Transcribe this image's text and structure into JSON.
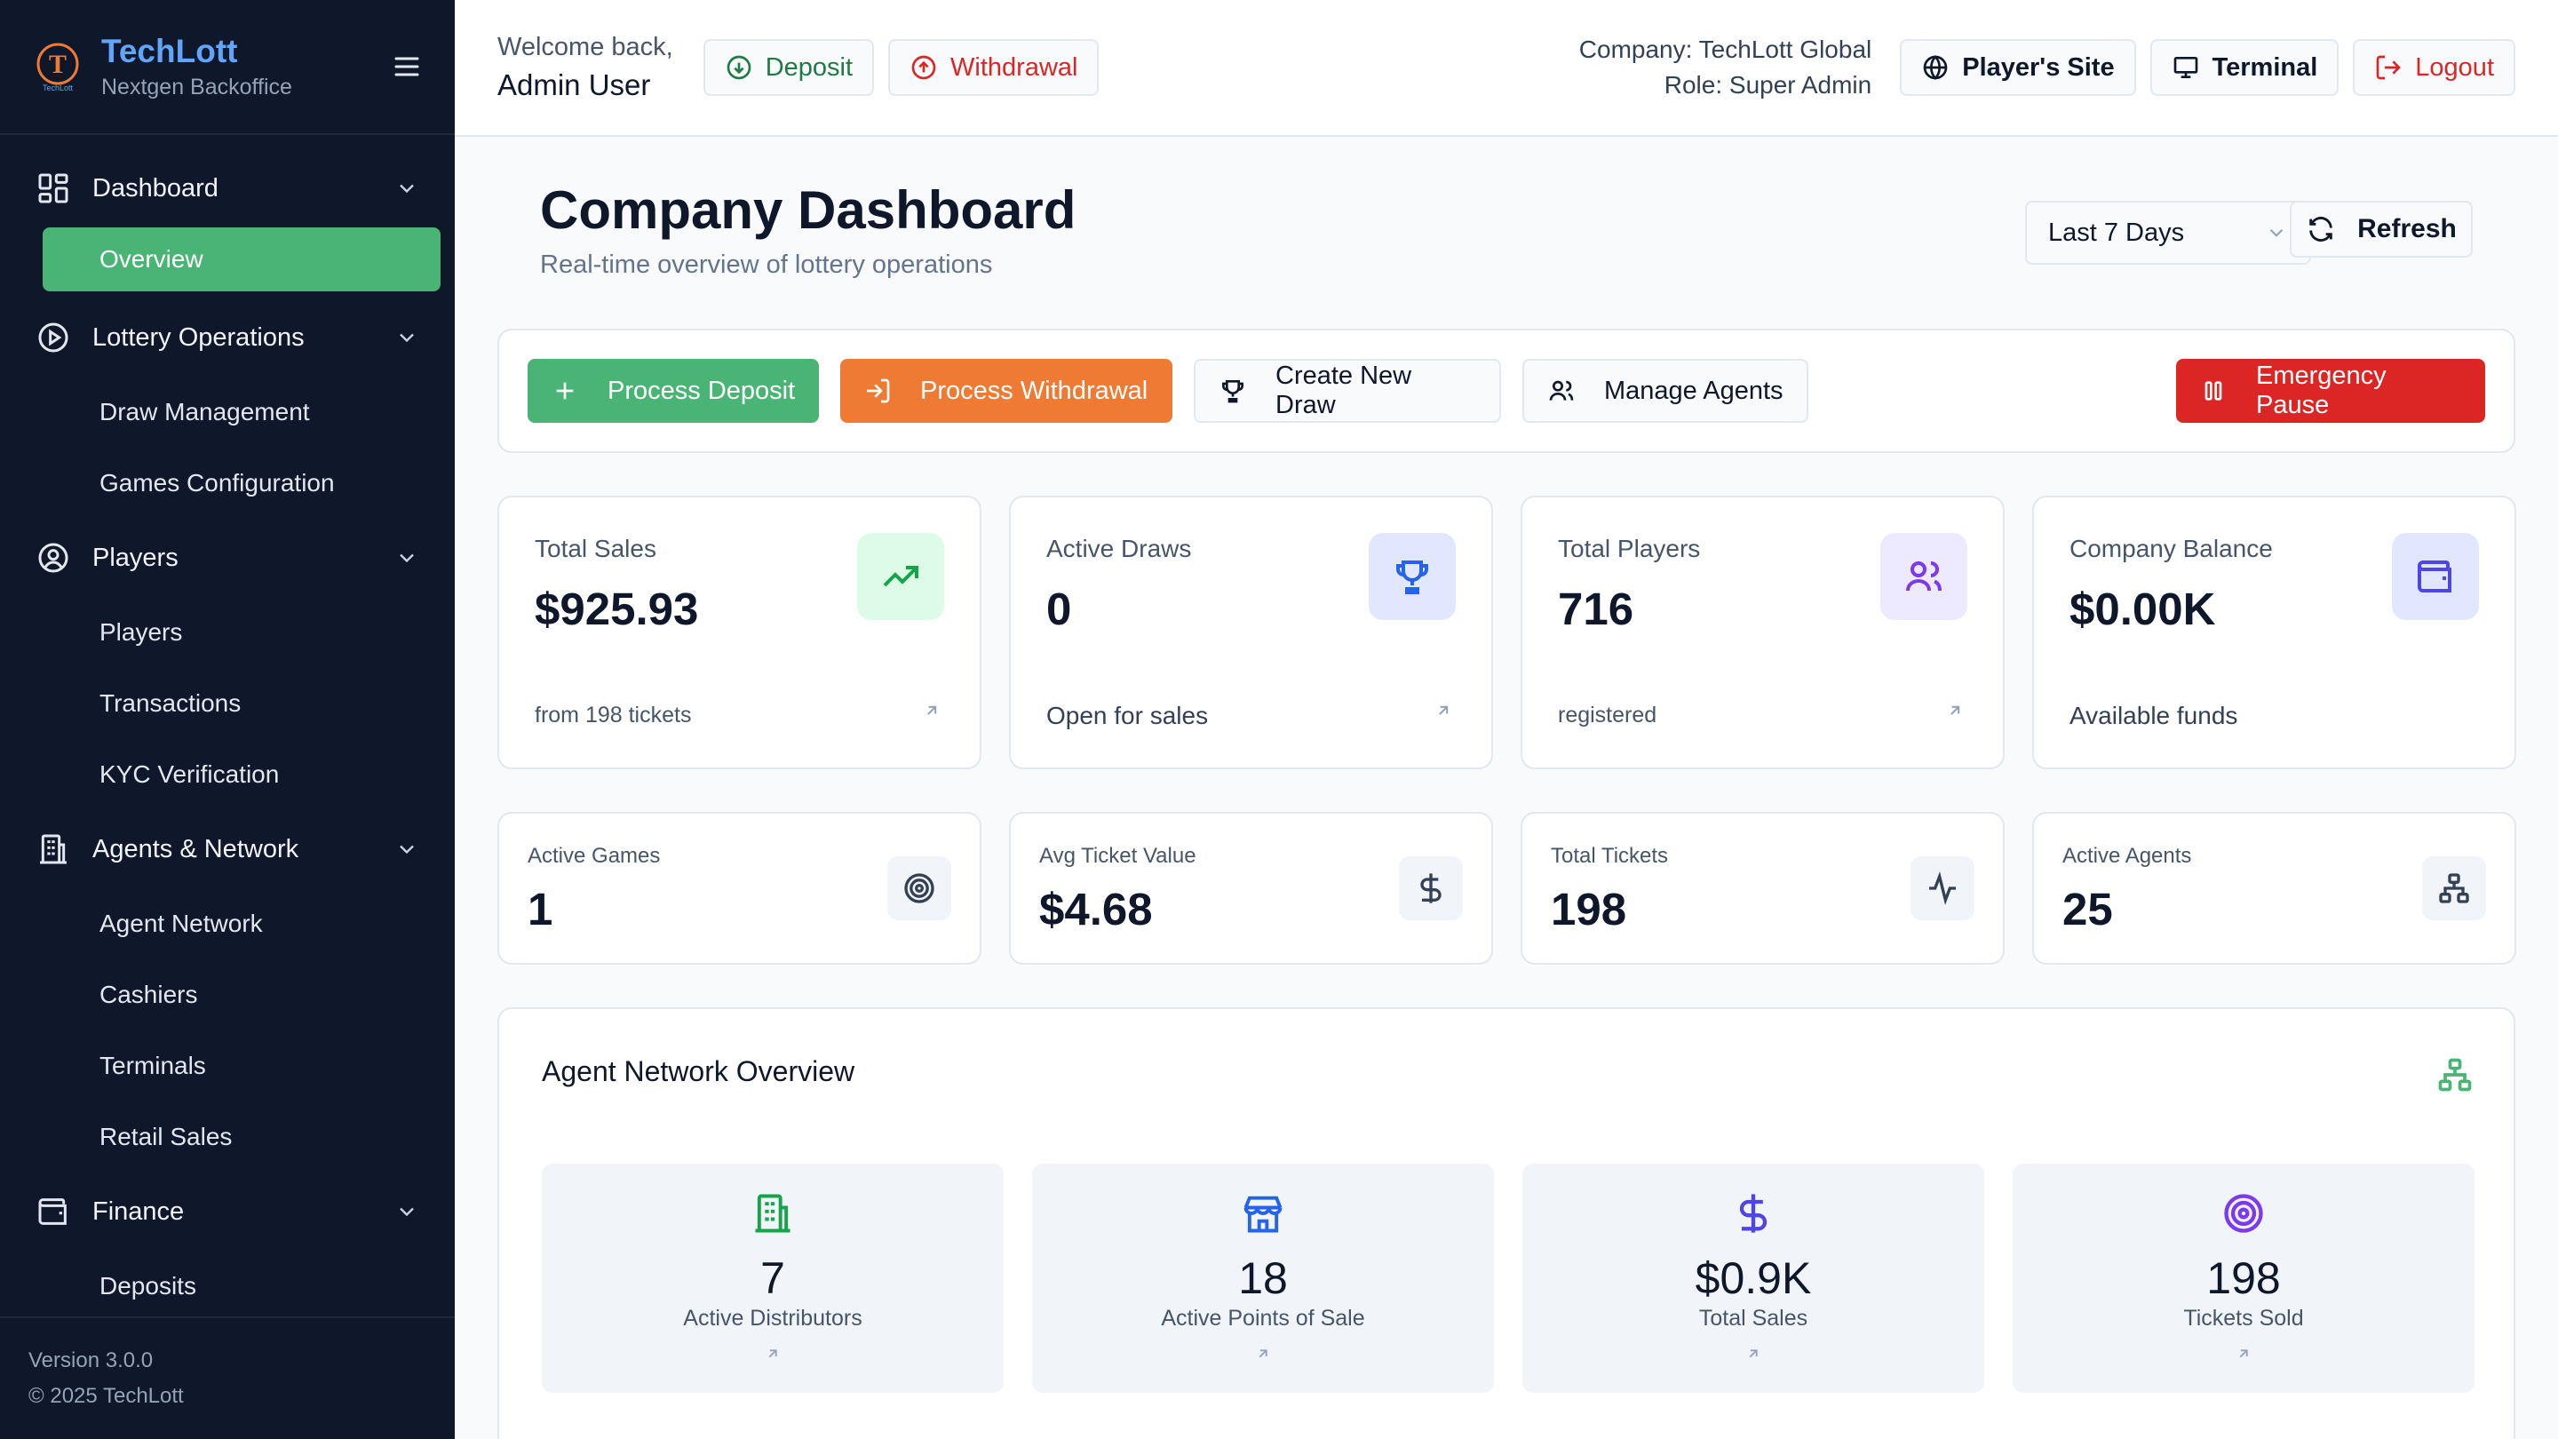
{
  "brand": {
    "name": "TechLott",
    "subtitle": "Nextgen Backoffice",
    "logo_text": "TechLott",
    "logo_letter": "T"
  },
  "sidebar": {
    "groups": [
      {
        "label": "Dashboard",
        "icon": "grid-icon",
        "items": [
          {
            "label": "Overview",
            "active": true
          }
        ]
      },
      {
        "label": "Lottery Operations",
        "icon": "play-circle-icon",
        "items": [
          {
            "label": "Draw Management"
          },
          {
            "label": "Games Configuration"
          }
        ]
      },
      {
        "label": "Players",
        "icon": "user-circle-icon",
        "items": [
          {
            "label": "Players"
          },
          {
            "label": "Transactions"
          },
          {
            "label": "KYC Verification"
          }
        ]
      },
      {
        "label": "Agents & Network",
        "icon": "building-icon",
        "items": [
          {
            "label": "Agent Network"
          },
          {
            "label": "Cashiers"
          },
          {
            "label": "Terminals"
          },
          {
            "label": "Retail Sales"
          }
        ]
      },
      {
        "label": "Finance",
        "icon": "wallet-icon",
        "items": [
          {
            "label": "Deposits"
          }
        ]
      }
    ],
    "version": "Version 3.0.0",
    "copyright": "© 2025 TechLott"
  },
  "topbar": {
    "welcome": "Welcome back,",
    "user": "Admin User",
    "deposit": "Deposit",
    "withdrawal": "Withdrawal",
    "company": "Company: TechLott Global",
    "role": "Role: Super Admin",
    "players_site": "Player's Site",
    "terminal": "Terminal",
    "logout": "Logout"
  },
  "header": {
    "title": "Company Dashboard",
    "subtitle": "Real-time overview of lottery operations",
    "range": "Last 7 Days",
    "refresh": "Refresh"
  },
  "actions": {
    "process_deposit": "Process Deposit",
    "process_withdrawal": "Process Withdrawal",
    "create_draw": "Create New Draw",
    "manage_agents": "Manage Agents",
    "emergency_pause": "Emergency Pause"
  },
  "stats": [
    {
      "label": "Total Sales",
      "value": "$925.93",
      "foot": "from 198 tickets",
      "icon": "trending-up-icon",
      "icon_bg": "#dcfce7",
      "icon_color": "#16a34a"
    },
    {
      "label": "Active Draws",
      "value": "0",
      "foot": "Open for sales",
      "icon": "trophy-icon",
      "icon_bg": "#e0e7ff",
      "icon_color": "#2563eb"
    },
    {
      "label": "Total Players",
      "value": "716",
      "foot": "registered",
      "icon": "users-icon",
      "icon_bg": "#ede9fe",
      "icon_color": "#7c3aed"
    },
    {
      "label": "Company Balance",
      "value": "$0.00K",
      "foot": "Available funds",
      "icon": "wallet-icon",
      "icon_bg": "#e0e7ff",
      "icon_color": "#4f46e5"
    }
  ],
  "mini_stats": [
    {
      "label": "Active Games",
      "value": "1",
      "icon": "target-icon"
    },
    {
      "label": "Avg Ticket Value",
      "value": "$4.68",
      "icon": "dollar-icon"
    },
    {
      "label": "Total Tickets",
      "value": "198",
      "icon": "activity-icon"
    },
    {
      "label": "Active Agents",
      "value": "25",
      "icon": "network-icon"
    }
  ],
  "network": {
    "title": "Agent Network Overview",
    "tiles": [
      {
        "value": "7",
        "label": "Active Distributors",
        "icon": "building-icon",
        "color": "#16a34a"
      },
      {
        "value": "18",
        "label": "Active Points of Sale",
        "icon": "store-icon",
        "color": "#2563eb"
      },
      {
        "value": "$0.9K",
        "label": "Total Sales",
        "icon": "dollar-icon",
        "color": "#4f46e5"
      },
      {
        "value": "198",
        "label": "Tickets Sold",
        "icon": "target-icon",
        "color": "#7c3aed"
      }
    ]
  }
}
